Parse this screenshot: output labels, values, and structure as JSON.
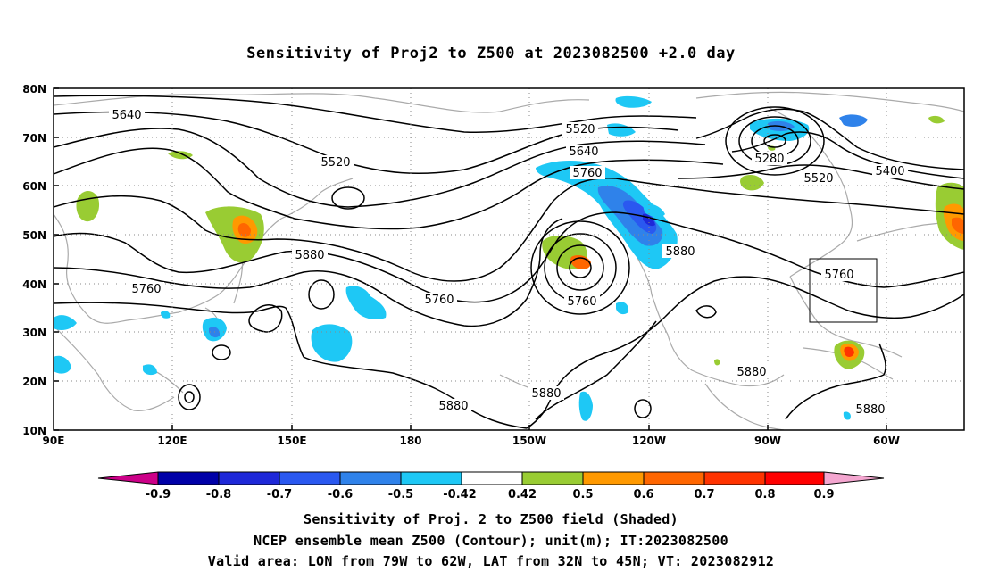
{
  "title": "Sensitivity of Proj2 to Z500 at 2023082500 +2.0 day",
  "map": {
    "lat_ticks": [
      "80N",
      "70N",
      "60N",
      "50N",
      "40N",
      "30N",
      "20N",
      "10N"
    ],
    "lon_ticks": [
      "90E",
      "120E",
      "150E",
      "180",
      "150W",
      "120W",
      "90W",
      "60W"
    ],
    "valid_area": {
      "lon_range": "79W to 62W",
      "lat_range": "32N to 45N"
    },
    "contour_labels": [
      "5640",
      "5520",
      "5520",
      "5640",
      "5760",
      "5280",
      "5520",
      "5400",
      "5880",
      "5880",
      "5760",
      "5760",
      "5760",
      "5760",
      "5880",
      "5880",
      "5880",
      "5880"
    ]
  },
  "colorbar": {
    "labels": [
      "-0.9",
      "-0.8",
      "-0.7",
      "-0.6",
      "-0.5",
      "-0.42",
      "0.42",
      "0.5",
      "0.6",
      "0.7",
      "0.8",
      "0.9"
    ],
    "colors": [
      "#0000a8",
      "#1e28d8",
      "#2a58f0",
      "#2f82ea",
      "#1ec8f5",
      "#ffffff",
      "#99cc33",
      "#ff9900",
      "#ff6600",
      "#ff3300",
      "#ff0000"
    ],
    "left_tip_color": "#cc0088",
    "right_tip_color": "#f4a6d0"
  },
  "captions": {
    "line1": "Sensitivity of Proj. 2 to Z500 field (Shaded)",
    "line2": "NCEP ensemble mean Z500 (Contour); unit(m); IT:2023082500",
    "line3": "Valid area: LON from 79W to 62W, LAT from 32N to 45N; VT: 2023082912"
  }
}
